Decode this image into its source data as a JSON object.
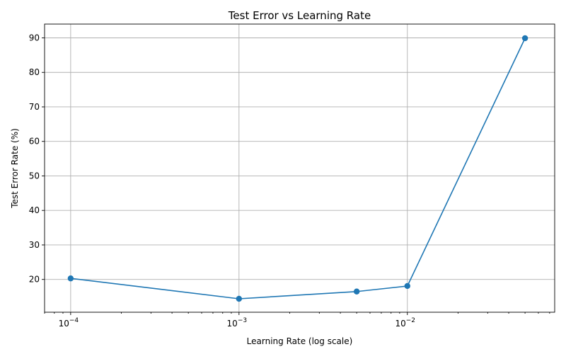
{
  "chart_data": {
    "type": "line",
    "title": "Test Error vs Learning Rate",
    "xlabel": "Learning Rate (log scale)",
    "ylabel": "Test Error Rate (%)",
    "x_scale": "log",
    "xlim": [
      7e-05,
      0.075
    ],
    "ylim": [
      10.5,
      94
    ],
    "x_ticks": [
      {
        "value": 0.0001,
        "base": "10",
        "exp": "−4"
      },
      {
        "value": 0.001,
        "base": "10",
        "exp": "−3"
      },
      {
        "value": 0.01,
        "base": "10",
        "exp": "−2"
      }
    ],
    "y_ticks": [
      20,
      30,
      40,
      50,
      60,
      70,
      80,
      90
    ],
    "grid": true,
    "series": [
      {
        "color": "#1f77b4",
        "marker": "circle",
        "x": [
          0.0001,
          0.001,
          0.005,
          0.01,
          0.05
        ],
        "y": [
          20.3,
          14.4,
          16.5,
          18.1,
          89.9
        ]
      }
    ]
  }
}
